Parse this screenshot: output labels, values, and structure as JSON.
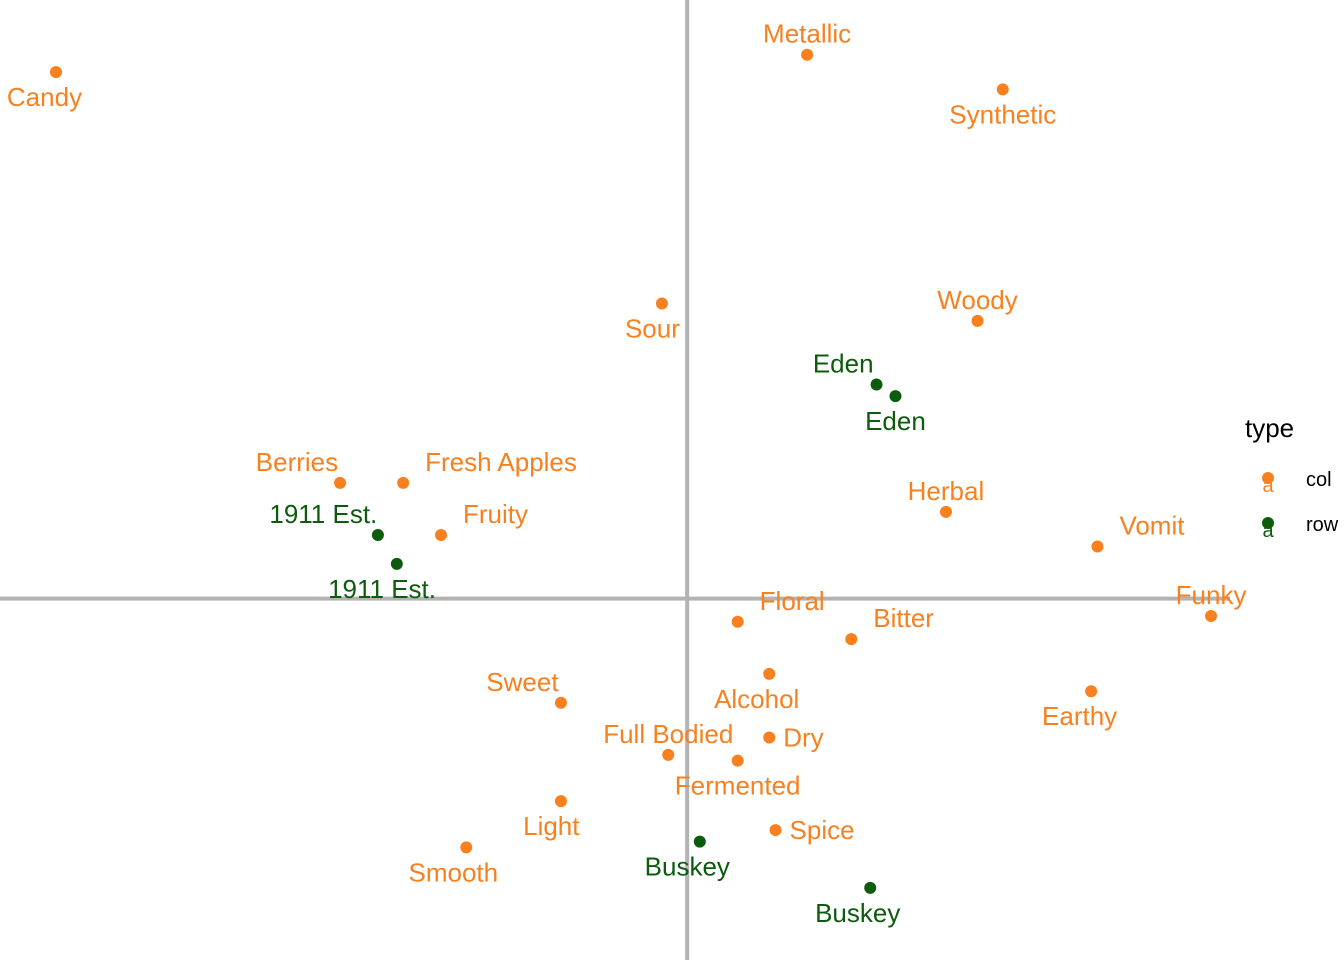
{
  "chart_data": {
    "type": "scatter",
    "title": "",
    "xlabel": "",
    "ylabel": "",
    "grid": false,
    "axes_lines_at_zero": true,
    "xlim": [
      -1.0,
      0.86
    ],
    "ylim": [
      -0.59,
      1.0
    ],
    "legend": {
      "title": "type",
      "placement": "right",
      "items": [
        {
          "label": "col",
          "color": "#F8801E",
          "key_glyph": "a"
        },
        {
          "label": "row",
          "color": "#0D5C0D",
          "key_glyph": "a"
        }
      ]
    },
    "colors": {
      "col": "#F8801E",
      "row": "#0D5C0D",
      "axis": "#B3B3B3"
    },
    "series": [
      {
        "name": "col",
        "points": [
          {
            "label": "Candy",
            "x": -1.0,
            "y": 0.91,
            "anchor": "below-left"
          },
          {
            "label": "Metallic",
            "x": 0.19,
            "y": 0.94,
            "anchor": "above"
          },
          {
            "label": "Synthetic",
            "x": 0.5,
            "y": 0.88,
            "anchor": "below"
          },
          {
            "label": "Sour",
            "x": -0.04,
            "y": 0.51,
            "anchor": "below-left"
          },
          {
            "label": "Woody",
            "x": 0.46,
            "y": 0.48,
            "anchor": "above"
          },
          {
            "label": "Berries",
            "x": -0.55,
            "y": 0.2,
            "anchor": "above-left"
          },
          {
            "label": "Fresh Apples",
            "x": -0.45,
            "y": 0.2,
            "anchor": "above-right"
          },
          {
            "label": "Fruity",
            "x": -0.39,
            "y": 0.11,
            "anchor": "above-right"
          },
          {
            "label": "Herbal",
            "x": 0.41,
            "y": 0.15,
            "anchor": "above"
          },
          {
            "label": "Vomit",
            "x": 0.65,
            "y": 0.09,
            "anchor": "above-right"
          },
          {
            "label": "Floral",
            "x": 0.08,
            "y": -0.04,
            "anchor": "above-right"
          },
          {
            "label": "Bitter",
            "x": 0.26,
            "y": -0.07,
            "anchor": "above-right"
          },
          {
            "label": "Funky",
            "x": 0.83,
            "y": -0.03,
            "anchor": "above"
          },
          {
            "label": "Sweet",
            "x": -0.2,
            "y": -0.18,
            "anchor": "above-left"
          },
          {
            "label": "Alcohol",
            "x": 0.13,
            "y": -0.13,
            "anchor": "below-left"
          },
          {
            "label": "Earthy",
            "x": 0.64,
            "y": -0.16,
            "anchor": "below-left"
          },
          {
            "label": "Full Bodied",
            "x": -0.03,
            "y": -0.27,
            "anchor": "above"
          },
          {
            "label": "Dry",
            "x": 0.13,
            "y": -0.24,
            "anchor": "right"
          },
          {
            "label": "Fermented",
            "x": 0.08,
            "y": -0.28,
            "anchor": "below"
          },
          {
            "label": "Light",
            "x": -0.2,
            "y": -0.35,
            "anchor": "below-left"
          },
          {
            "label": "Spice",
            "x": 0.14,
            "y": -0.4,
            "anchor": "right"
          },
          {
            "label": "Smooth",
            "x": -0.35,
            "y": -0.43,
            "anchor": "below-left"
          }
        ]
      },
      {
        "name": "row",
        "points": [
          {
            "label": "Eden",
            "x": 0.3,
            "y": 0.37,
            "anchor": "above-left"
          },
          {
            "label": "Eden",
            "x": 0.33,
            "y": 0.35,
            "anchor": "below"
          },
          {
            "label": "1911 Est.",
            "x": -0.49,
            "y": 0.11,
            "anchor": "above-left"
          },
          {
            "label": "1911 Est.",
            "x": -0.46,
            "y": 0.06,
            "anchor": "below-left"
          },
          {
            "label": "Buskey",
            "x": 0.02,
            "y": -0.42,
            "anchor": "below-left"
          },
          {
            "label": "Buskey",
            "x": 0.29,
            "y": -0.5,
            "anchor": "below-left"
          }
        ]
      }
    ]
  }
}
